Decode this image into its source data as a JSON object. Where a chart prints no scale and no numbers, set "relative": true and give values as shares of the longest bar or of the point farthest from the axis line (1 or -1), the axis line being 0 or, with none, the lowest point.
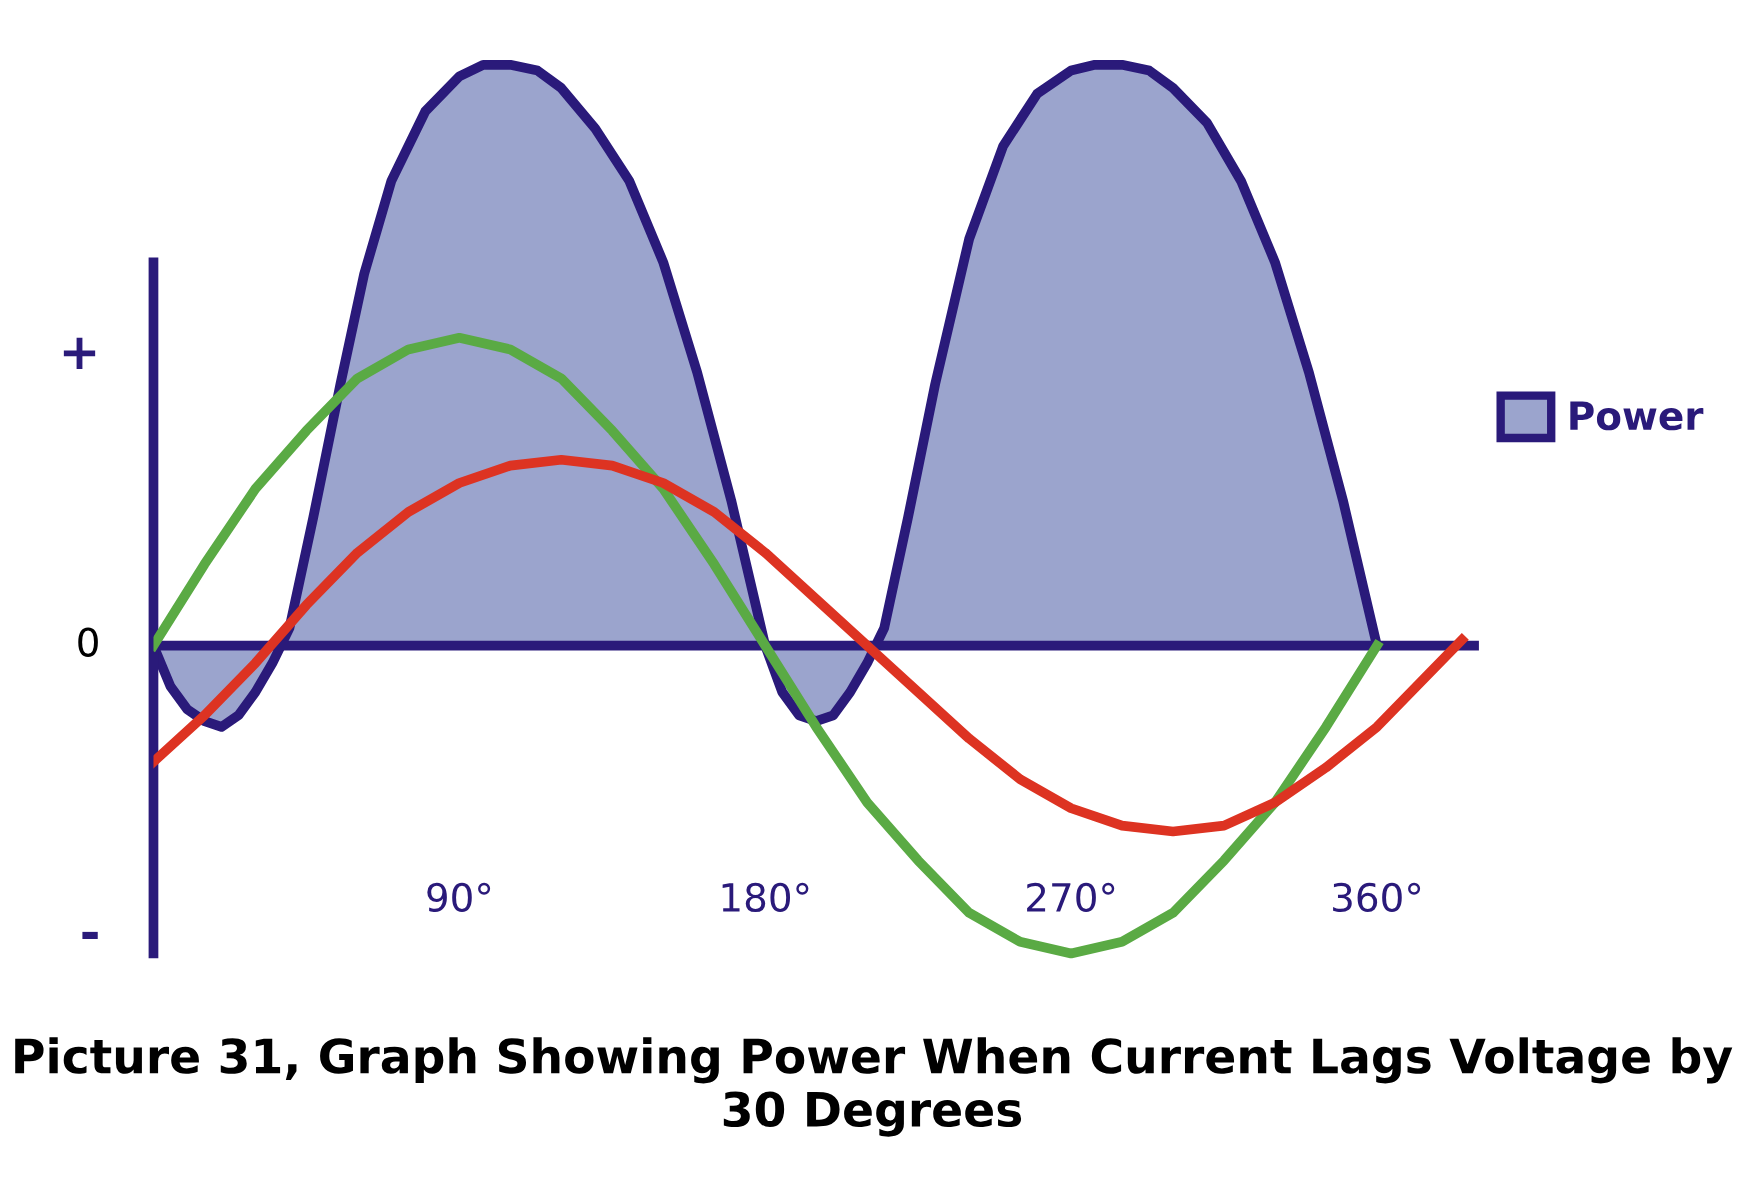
{
  "chart_data": {
    "type": "line",
    "title": "Picture 31, Graph Showing Power When Current Lags Voltage by 30 Degrees",
    "relative": true,
    "annotations": [
      "+",
      "0",
      "-"
    ],
    "xlim": [
      0,
      390
    ],
    "xticks": [
      {
        "value": 90,
        "label": "90°"
      },
      {
        "value": 180,
        "label": "180°"
      },
      {
        "value": 270,
        "label": "270°"
      },
      {
        "value": 360,
        "label": "360°"
      }
    ],
    "ref_lines": [
      {
        "axis": "y",
        "value": 0,
        "color": "#2a1a7a"
      }
    ],
    "grid": false,
    "legend": "right",
    "marker": "none",
    "line_style": "solid",
    "series": [
      {
        "name": "Power",
        "type": "area",
        "color": "#9ba4cd",
        "x": [
          0,
          5,
          10,
          15,
          20,
          25,
          30,
          35,
          40,
          47,
          55,
          62,
          70,
          80,
          90,
          97,
          105,
          113,
          120,
          130,
          140,
          150,
          160,
          170,
          180,
          185,
          190,
          195,
          200,
          205,
          210,
          215,
          222,
          230,
          240,
          250,
          260,
          270,
          277,
          285,
          293,
          300,
          310,
          320,
          330,
          340,
          350,
          360
        ],
        "values": [
          0,
          -0.07,
          -0.11,
          -0.13,
          -0.14,
          -0.12,
          -0.08,
          -0.03,
          0.03,
          0.22,
          0.45,
          0.64,
          0.8,
          0.92,
          0.98,
          1,
          1,
          0.99,
          0.96,
          0.89,
          0.8,
          0.66,
          0.47,
          0.25,
          0,
          -0.08,
          -0.12,
          -0.13,
          -0.12,
          -0.08,
          -0.03,
          0.03,
          0.22,
          0.45,
          0.7,
          0.86,
          0.95,
          0.99,
          1,
          1,
          0.99,
          0.96,
          0.9,
          0.8,
          0.66,
          0.47,
          0.25,
          0
        ]
      },
      {
        "color": "#5aaa44",
        "x": [
          0,
          15,
          30,
          45,
          60,
          75,
          90,
          105,
          120,
          135,
          150,
          165,
          180,
          195,
          210,
          225,
          240,
          255,
          270,
          285,
          300,
          315,
          330,
          345,
          360
        ],
        "values": [
          0,
          0.14,
          0.27,
          0.37,
          0.46,
          0.51,
          0.53,
          0.51,
          0.46,
          0.37,
          0.27,
          0.14,
          0,
          -0.14,
          -0.27,
          -0.37,
          -0.46,
          -0.51,
          -0.53,
          -0.51,
          -0.46,
          -0.37,
          -0.27,
          -0.14,
          0
        ]
      },
      {
        "color": "#dd3322",
        "x": [
          0,
          15,
          30,
          45,
          60,
          75,
          90,
          105,
          120,
          135,
          150,
          165,
          180,
          195,
          210,
          225,
          240,
          255,
          270,
          285,
          300,
          315,
          330,
          345,
          360,
          375,
          385
        ],
        "values": [
          -0.2,
          -0.12,
          -0.03,
          0.07,
          0.16,
          0.23,
          0.28,
          0.31,
          0.32,
          0.31,
          0.28,
          0.23,
          0.16,
          0.08,
          0,
          -0.08,
          -0.16,
          -0.23,
          -0.28,
          -0.31,
          -0.32,
          -0.31,
          -0.27,
          -0.21,
          -0.14,
          -0.05,
          0.01
        ]
      }
    ]
  }
}
